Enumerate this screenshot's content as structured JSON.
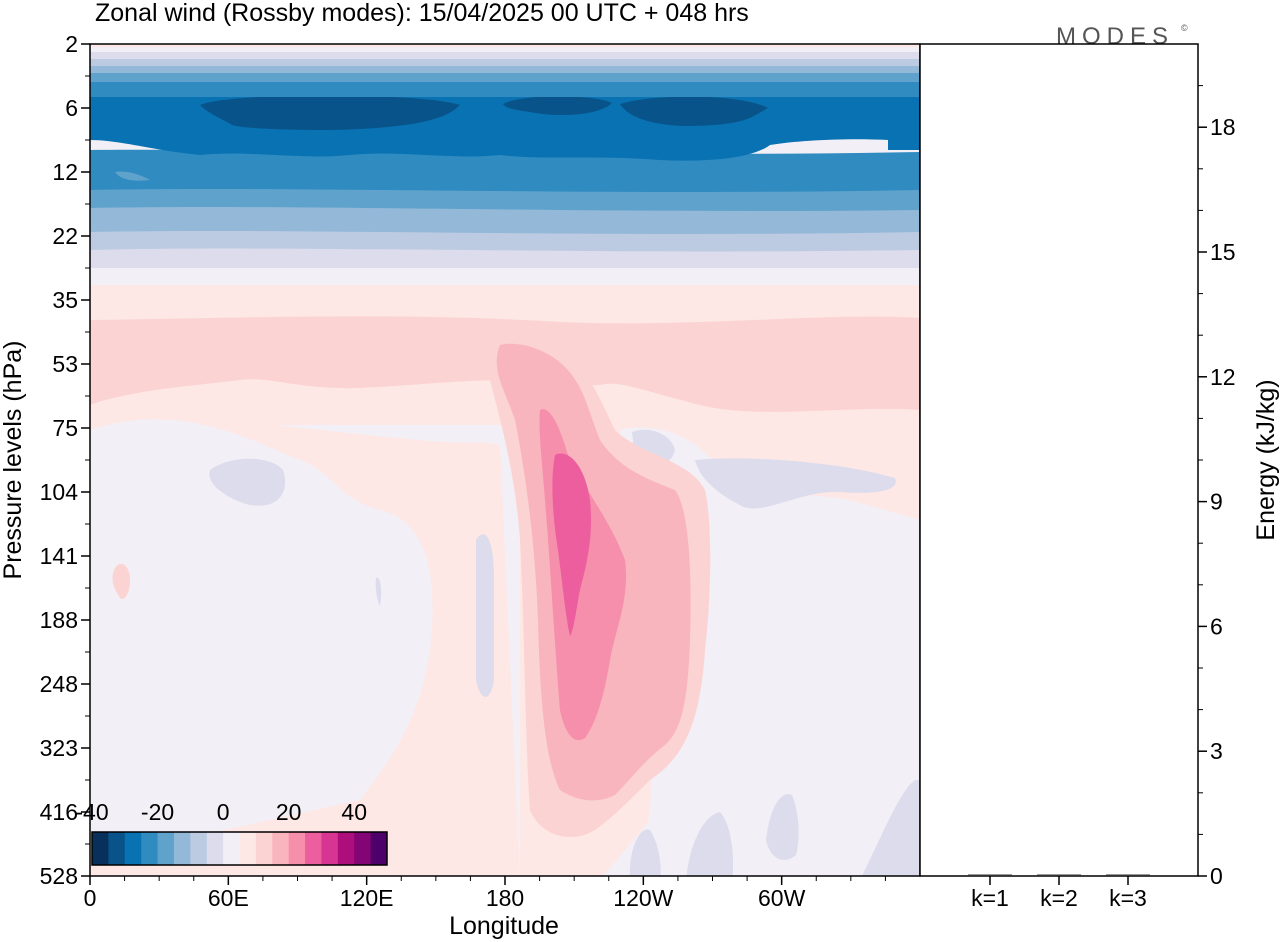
{
  "title": "Zonal wind (Rossby modes):  15/04/2025  00 UTC  + 048 hrs",
  "logo": "MODES",
  "chart_data": [
    {
      "type": "heatmap",
      "name": "zonal-wind-section",
      "xlabel": "Longitude",
      "ylabel": "Pressure levels (hPa)",
      "x_ticks": [
        "0",
        "60E",
        "120E",
        "180",
        "120W",
        "60W"
      ],
      "x_tick_degrees": [
        0,
        60,
        120,
        180,
        240,
        300
      ],
      "xlim": [
        0,
        360
      ],
      "y_ticks": [
        "2",
        "6",
        "12",
        "22",
        "35",
        "53",
        "75",
        "104",
        "141",
        "188",
        "248",
        "323",
        "416",
        "528"
      ],
      "colorbar": {
        "tick_labels": [
          "-40",
          "-20",
          "0",
          "20",
          "40"
        ],
        "levels": [
          -40,
          -35,
          -30,
          -25,
          -20,
          -15,
          -10,
          -5,
          0,
          5,
          10,
          15,
          20,
          25,
          30,
          35,
          40,
          45
        ],
        "colors": [
          "#08305a",
          "#08538a",
          "#0872b2",
          "#2f8bc0",
          "#5fa3cc",
          "#93b8d8",
          "#bccbe2",
          "#dddcec",
          "#f3eff6",
          "#fde8e5",
          "#fbd3d2",
          "#f9b5bd",
          "#f58fac",
          "#ec5e9e",
          "#d83593",
          "#ae0d7c",
          "#830474",
          "#4d006a"
        ]
      },
      "features": [
        {
          "description": "westward jet core",
          "value": -40,
          "levels": [
            "5",
            "7"
          ],
          "lon": [
            25,
            300
          ]
        },
        {
          "description": "eastward jet core",
          "value": 30,
          "levels": [
            "104",
            "188"
          ],
          "lon": [
            195,
            205
          ]
        }
      ]
    },
    {
      "type": "bar",
      "name": "energy-spectrum",
      "categories": [
        "k=1",
        "k=2",
        "k=3"
      ],
      "values": [
        0.02,
        0.02,
        0.01
      ],
      "ylabel": "Energy (kJ/kg)",
      "ylim": [
        0,
        20
      ],
      "y_ticks": [
        0,
        3,
        6,
        9,
        12,
        15,
        18
      ]
    }
  ]
}
